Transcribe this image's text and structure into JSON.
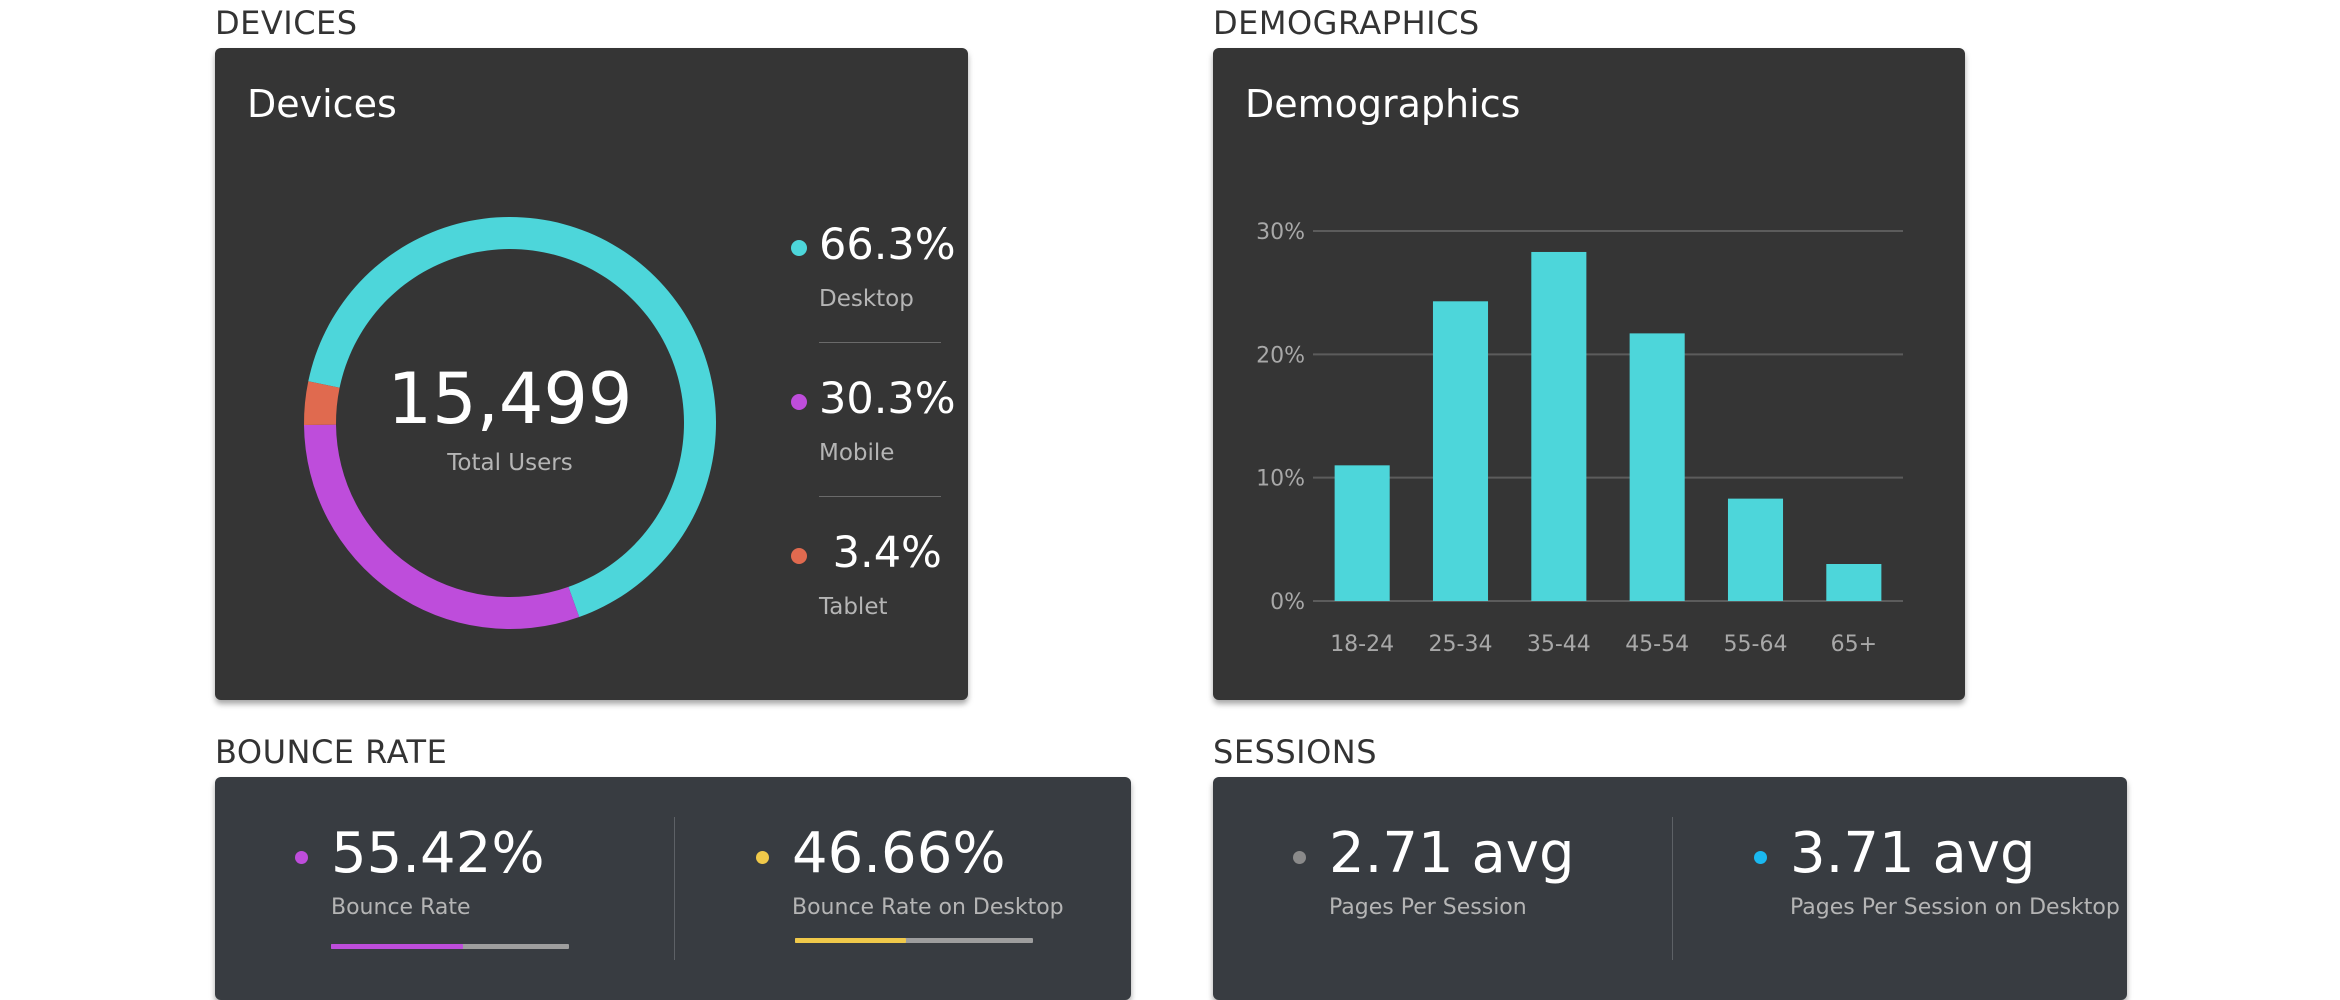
{
  "sections": {
    "devices": "DEVICES",
    "demographics": "DEMOGRAPHICS",
    "bounce_rate": "BOUNCE RATE",
    "sessions": "SESSIONS"
  },
  "devices_card": {
    "title": "Devices",
    "total_value": "15,499",
    "total_label": "Total Users",
    "legend": [
      {
        "value": "66.3%",
        "label": "Desktop",
        "color": "#4dd6da"
      },
      {
        "value": "30.3%",
        "label": "Mobile",
        "color": "#be4ddb"
      },
      {
        "value": " 3.4%",
        "label": "Tablet",
        "color": "#e06a4f"
      }
    ]
  },
  "demographics_card": {
    "title": "Demographics"
  },
  "chart_data": [
    {
      "type": "pie",
      "categories": [
        "Desktop",
        "Mobile",
        "Tablet"
      ],
      "values": [
        66.3,
        30.3,
        3.4
      ],
      "colors": [
        "#4dd6da",
        "#be4ddb",
        "#e06a4f"
      ],
      "title": "Devices"
    },
    {
      "type": "bar",
      "title": "Demographics",
      "categories": [
        "18-24",
        "25-34",
        "35-44",
        "45-54",
        "55-64",
        "65+"
      ],
      "values": [
        11,
        24.3,
        28.3,
        21.7,
        8.3,
        3
      ],
      "yticks": [
        "0%",
        "10%",
        "20%",
        "30%"
      ],
      "ylim": [
        0,
        30
      ],
      "grid": true,
      "bar_color": "#4dd6da",
      "xlabel": "",
      "ylabel": ""
    }
  ],
  "bounce_card": {
    "stats": [
      {
        "value": "55.42%",
        "label": "Bounce Rate",
        "dot_color": "#be4ddb",
        "bar_color": "#be4ddb",
        "progress": 0.5542
      },
      {
        "value": "46.66%",
        "label": "Bounce Rate on Desktop",
        "dot_color": "#f0c94a",
        "bar_color": "#f0c94a",
        "progress": 0.4666
      }
    ]
  },
  "sessions_card": {
    "stats": [
      {
        "value": "2.71 avg",
        "label": "Pages Per Session",
        "dot_color": "#8a8a8a"
      },
      {
        "value": "3.71 avg",
        "label": "Pages Per Session on Desktop",
        "dot_color": "#1ab8f0"
      }
    ]
  }
}
